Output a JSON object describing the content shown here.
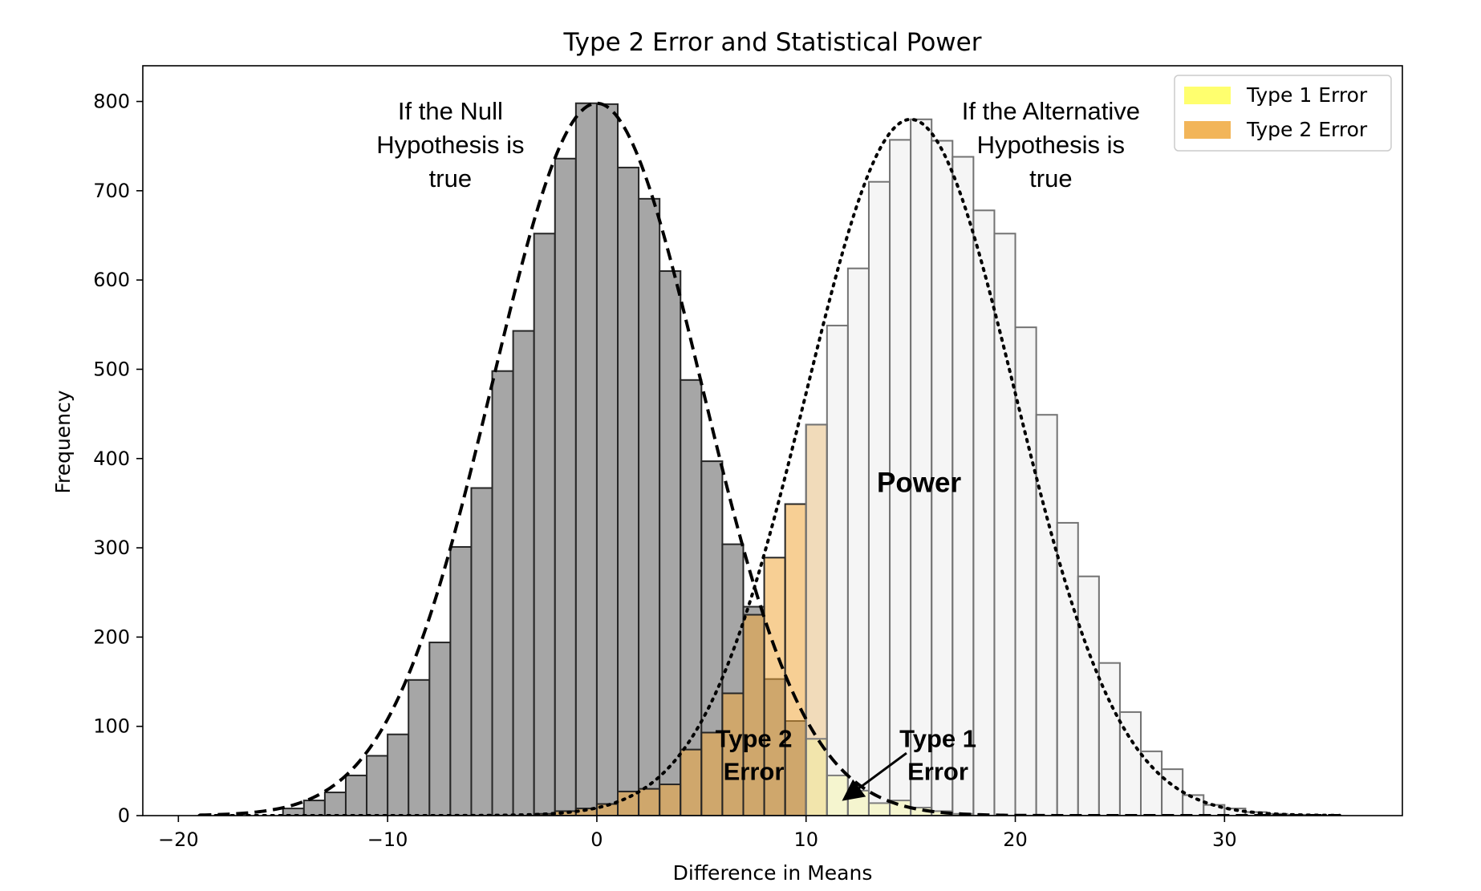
{
  "chart_data": {
    "type": "bar",
    "title": "Type 2 Error and Statistical Power",
    "xlabel": "Difference in Means",
    "ylabel": "Frequency",
    "xlim": [
      -21.7,
      38.5
    ],
    "ylim": [
      0,
      840
    ],
    "xticks": [
      -20,
      -10,
      0,
      10,
      20,
      30
    ],
    "xtick_labels": [
      "−20",
      "−10",
      "0",
      "10",
      "20",
      "30"
    ],
    "yticks": [
      0,
      100,
      200,
      300,
      400,
      500,
      600,
      700,
      800
    ],
    "bin_width": 1.0,
    "colors": {
      "null_hist": "#a6a6a6",
      "alt_hist": "#e8e8e8",
      "type1": "#ffff55",
      "type2": "#f0a83c",
      "edge": "#262626",
      "alt_edge": "#737373"
    },
    "legend": {
      "placement": "top-right",
      "entries": [
        {
          "label": "Type 1 Error",
          "color": "#ffff55"
        },
        {
          "label": "Type 2 Error",
          "color": "#f0a83c"
        }
      ]
    },
    "series": [
      {
        "name": "If the Null Hypothesis is true",
        "kind": "histogram",
        "bins": [
          {
            "x0": -15.0,
            "y": 8
          },
          {
            "x0": -14.0,
            "y": 17
          },
          {
            "x0": -13.0,
            "y": 26
          },
          {
            "x0": -12.0,
            "y": 45
          },
          {
            "x0": -11.0,
            "y": 67
          },
          {
            "x0": -10.0,
            "y": 91
          },
          {
            "x0": -9.0,
            "y": 152
          },
          {
            "x0": -8.0,
            "y": 194
          },
          {
            "x0": -7.0,
            "y": 301
          },
          {
            "x0": -6.0,
            "y": 367
          },
          {
            "x0": -5.0,
            "y": 498
          },
          {
            "x0": -4.0,
            "y": 543
          },
          {
            "x0": -3.0,
            "y": 652
          },
          {
            "x0": -2.0,
            "y": 736
          },
          {
            "x0": -1.0,
            "y": 798
          },
          {
            "x0": 0.0,
            "y": 797
          },
          {
            "x0": 1.0,
            "y": 726
          },
          {
            "x0": 2.0,
            "y": 691
          },
          {
            "x0": 3.0,
            "y": 610
          },
          {
            "x0": 4.0,
            "y": 488
          },
          {
            "x0": 5.0,
            "y": 397
          },
          {
            "x0": 6.0,
            "y": 304
          },
          {
            "x0": 7.0,
            "y": 234
          },
          {
            "x0": 8.0,
            "y": 153
          },
          {
            "x0": 9.0,
            "y": 106
          }
        ]
      },
      {
        "name": "Type 1 Error",
        "kind": "histogram",
        "bins": [
          {
            "x0": 10.0,
            "y": 86
          },
          {
            "x0": 11.0,
            "y": 45
          },
          {
            "x0": 12.0,
            "y": 28
          },
          {
            "x0": 13.0,
            "y": 14
          },
          {
            "x0": 14.0,
            "y": 17
          },
          {
            "x0": 15.0,
            "y": 9
          },
          {
            "x0": 16.0,
            "y": 5
          },
          {
            "x0": 17.0,
            "y": 2
          }
        ]
      },
      {
        "name": "Type 2 Error",
        "kind": "histogram",
        "bins": [
          {
            "x0": -3.0,
            "y": 2
          },
          {
            "x0": -2.0,
            "y": 5
          },
          {
            "x0": -1.0,
            "y": 8
          },
          {
            "x0": 0.0,
            "y": 13
          },
          {
            "x0": 1.0,
            "y": 27
          },
          {
            "x0": 2.0,
            "y": 30
          },
          {
            "x0": 3.0,
            "y": 35
          },
          {
            "x0": 4.0,
            "y": 74
          },
          {
            "x0": 5.0,
            "y": 93
          },
          {
            "x0": 6.0,
            "y": 137
          },
          {
            "x0": 7.0,
            "y": 225
          },
          {
            "x0": 8.0,
            "y": 289
          },
          {
            "x0": 9.0,
            "y": 349
          },
          {
            "x0": 10.0,
            "y": 438
          }
        ]
      },
      {
        "name": "If the Alternative Hypothesis is true",
        "kind": "histogram",
        "bins": [
          {
            "x0": 10.0,
            "y": 438
          },
          {
            "x0": 11.0,
            "y": 549
          },
          {
            "x0": 12.0,
            "y": 613
          },
          {
            "x0": 13.0,
            "y": 710
          },
          {
            "x0": 14.0,
            "y": 757
          },
          {
            "x0": 15.0,
            "y": 780
          },
          {
            "x0": 16.0,
            "y": 756
          },
          {
            "x0": 17.0,
            "y": 738
          },
          {
            "x0": 18.0,
            "y": 678
          },
          {
            "x0": 19.0,
            "y": 652
          },
          {
            "x0": 20.0,
            "y": 547
          },
          {
            "x0": 21.0,
            "y": 449
          },
          {
            "x0": 22.0,
            "y": 328
          },
          {
            "x0": 23.0,
            "y": 268
          },
          {
            "x0": 24.0,
            "y": 171
          },
          {
            "x0": 25.0,
            "y": 116
          },
          {
            "x0": 26.0,
            "y": 72
          },
          {
            "x0": 27.0,
            "y": 52
          },
          {
            "x0": 28.0,
            "y": 23
          },
          {
            "x0": 29.0,
            "y": 12
          },
          {
            "x0": 30.0,
            "y": 8
          },
          {
            "x0": 31.0,
            "y": 4
          },
          {
            "x0": 32.0,
            "y": 2
          },
          {
            "x0": 33.0,
            "y": 1
          }
        ]
      },
      {
        "name": "Null density",
        "kind": "curve",
        "style": "dashed",
        "mean": 0,
        "sd": 5,
        "peak": 798,
        "x_range": [
          -19,
          35.5
        ]
      },
      {
        "name": "Alternative density",
        "kind": "curve",
        "style": "dotted",
        "mean": 15,
        "sd": 5,
        "peak": 780,
        "x_range": [
          -19,
          35.5
        ]
      }
    ],
    "annotations": [
      {
        "id": "null",
        "lines": [
          "If the Null",
          "Hypothesis is",
          "true"
        ],
        "x": -7.0,
        "y": 790,
        "bold": false
      },
      {
        "id": "alt",
        "lines": [
          "If the Alternative",
          "Hypothesis is",
          "true"
        ],
        "x": 21.7,
        "y": 790,
        "bold": false
      },
      {
        "id": "power",
        "lines": [
          "Power"
        ],
        "x": 15.4,
        "y": 374,
        "bold": true
      },
      {
        "id": "type2",
        "lines": [
          "Type 2",
          "Error"
        ],
        "x": 7.5,
        "y": 87,
        "bold": true
      },
      {
        "id": "type1",
        "lines": [
          "Type 1",
          "Error"
        ],
        "x": 16.3,
        "y": 87,
        "bold": true
      }
    ],
    "arrow": {
      "from": [
        14.8,
        70
      ],
      "to": [
        11.8,
        18
      ]
    }
  }
}
